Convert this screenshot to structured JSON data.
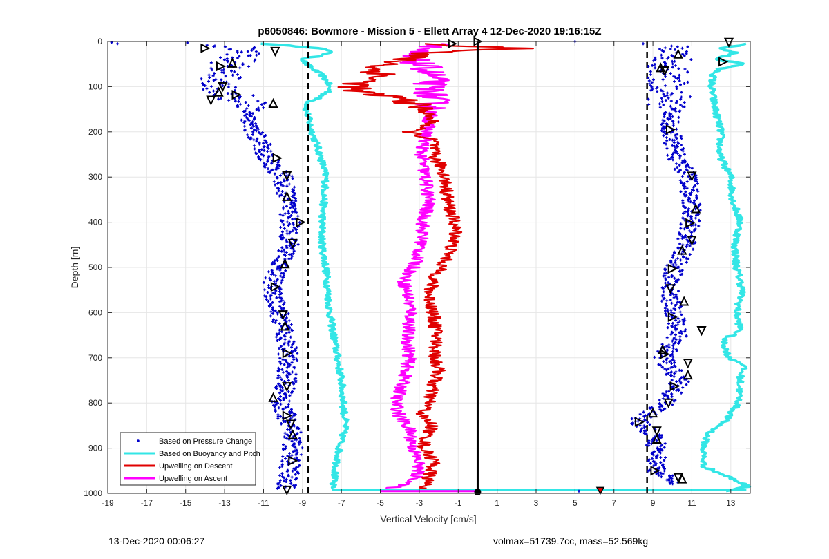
{
  "chart_data": {
    "type": "scatter",
    "title": "p6050846: Bowmore - Mission 5 - Ellett Array 4 12-Dec-2020 19:16:15Z",
    "xlabel": "Vertical Velocity [cm/s]",
    "ylabel": "Depth [m]",
    "xlim": [
      -19,
      14
    ],
    "ylim": [
      0,
      1000
    ],
    "y_reversed": true,
    "grid": true,
    "xticks": [
      -19,
      -17,
      -15,
      -13,
      -11,
      -9,
      -7,
      -5,
      -3,
      -1,
      1,
      3,
      5,
      7,
      9,
      11,
      13
    ],
    "yticks": [
      0,
      100,
      200,
      300,
      400,
      500,
      600,
      700,
      800,
      900,
      1000
    ],
    "legend_position": "bottom-left",
    "legend": [
      {
        "label": "Based on Pressure Change",
        "color": "#0000CC",
        "style": "marker"
      },
      {
        "label": "Based on Buoyancy and Pitch",
        "color": "#33E6E6",
        "style": "line"
      },
      {
        "label": "Upwelling on Descent",
        "color": "#E00000",
        "style": "line"
      },
      {
        "label": "Upwelling on Ascent",
        "color": "#FF00FF",
        "style": "line"
      }
    ],
    "reference_lines": [
      {
        "x": -8.7,
        "style": "dashed",
        "color": "#000000"
      },
      {
        "x": 8.7,
        "style": "dashed",
        "color": "#000000"
      },
      {
        "x": 0,
        "style": "solid",
        "color": "#000000"
      }
    ],
    "series": [
      {
        "name": "Based on Buoyancy and Pitch",
        "color": "#33E6E6",
        "segments": [
          {
            "depth": [
              5,
              15,
              25,
              40,
              50,
              60,
              75,
              90,
              110,
              125,
              135,
              150,
              170,
              200,
              250,
              300,
              350,
              400,
              450,
              500,
              550,
              600,
              650,
              700,
              750,
              800,
              850,
              900,
              950,
              990
            ],
            "velocity": [
              -11,
              -8,
              -7.5,
              -9,
              -8.8,
              -8.5,
              -8,
              -7.7,
              -7.6,
              -8.2,
              -8.7,
              -8.8,
              -8.7,
              -8.5,
              -8.1,
              -7.8,
              -7.9,
              -8,
              -8,
              -7.8,
              -7.7,
              -7.6,
              -7.4,
              -7.2,
              -7,
              -6.9,
              -6.8,
              -7.1,
              -7.3,
              -7.5
            ]
          },
          {
            "depth": [
              5,
              15,
              25,
              40,
              50,
              60,
              75,
              100,
              150,
              200,
              250,
              300,
              350,
              400,
              450,
              500,
              550,
              600,
              640,
              660,
              700,
              715,
              740,
              800,
              840,
              870,
              900,
              940,
              970,
              985,
              995
            ],
            "velocity": [
              13.9,
              12.5,
              13.2,
              12.2,
              13.8,
              12.4,
              12.1,
              12,
              12.2,
              12.5,
              12.4,
              13,
              13.1,
              13.5,
              13.2,
              13.3,
              13.6,
              13.3,
              13.5,
              12.6,
              12.9,
              13.7,
              13.5,
              13.4,
              12.7,
              11.8,
              11.6,
              11.6,
              13.2,
              13.9,
              12.8
            ]
          }
        ]
      },
      {
        "name": "Upwelling on Descent",
        "color": "#E00000",
        "depth": [
          5,
          15,
          25,
          35,
          50,
          60,
          75,
          90,
          110,
          125,
          140,
          160,
          180,
          200,
          220,
          240,
          260,
          280,
          300,
          330,
          360,
          400,
          430,
          450,
          480,
          500,
          530,
          560,
          600,
          650,
          700,
          730,
          760,
          800,
          830,
          850,
          870,
          900,
          930,
          960,
          990
        ],
        "velocity": [
          -3.5,
          2.5,
          -2.5,
          -3.5,
          -4.5,
          -5.5,
          -4.8,
          -6,
          -6.5,
          -4,
          -3.2,
          -2.6,
          -2.3,
          -3.5,
          -2.2,
          -2.3,
          -2.2,
          -1.8,
          -1.7,
          -1.6,
          -1.5,
          -1.2,
          -1.1,
          -1.3,
          -1.6,
          -1.9,
          -2.3,
          -2.5,
          -2.3,
          -2.1,
          -2.2,
          -2.0,
          -2.3,
          -2.5,
          -2.9,
          -2.3,
          -2.6,
          -2.8,
          -2.2,
          -2.5,
          -2.7
        ]
      },
      {
        "name": "Upwelling on Ascent",
        "color": "#FF00FF",
        "depth": [
          5,
          15,
          25,
          40,
          60,
          80,
          100,
          130,
          160,
          200,
          250,
          300,
          350,
          400,
          450,
          500,
          530,
          560,
          600,
          650,
          700,
          750,
          800,
          830,
          860,
          900,
          940,
          970,
          990
        ],
        "velocity": [
          -1.5,
          -2.5,
          -3.8,
          -3.4,
          -2.6,
          -2.3,
          -2.5,
          -2.3,
          -2.4,
          -2.6,
          -2.9,
          -2.7,
          -2.5,
          -2.8,
          -2.9,
          -3.3,
          -3.8,
          -3.6,
          -3.4,
          -3.6,
          -3.5,
          -3.8,
          -4.2,
          -4.0,
          -3.5,
          -3.3,
          -3.0,
          -3.2,
          -4.5
        ]
      }
    ],
    "pressure_change_samples": {
      "name": "Based on Pressure Change",
      "color": "#0000CC",
      "descent": {
        "depth": [
          10,
          30,
          60,
          100,
          130,
          150,
          180,
          220,
          260,
          300,
          350,
          400,
          450,
          500,
          550,
          600,
          650,
          700,
          750,
          800,
          850,
          900,
          950,
          990
        ],
        "velocity": [
          -12.5,
          -12,
          -13,
          -13.5,
          -12.2,
          -11.5,
          -11.8,
          -11.2,
          -10.8,
          -10,
          -9.8,
          -9.6,
          -9.7,
          -10.3,
          -10.6,
          -10.2,
          -9.9,
          -9.7,
          -9.8,
          -10.1,
          -9.6,
          -9.5,
          -9.7,
          -9.8
        ]
      },
      "ascent": {
        "depth": [
          10,
          30,
          60,
          100,
          150,
          200,
          250,
          300,
          350,
          400,
          450,
          500,
          550,
          600,
          650,
          700,
          750,
          800,
          840,
          870,
          900,
          950,
          980
        ],
        "velocity": [
          10.5,
          10,
          9.7,
          9.8,
          9.9,
          9.9,
          10.2,
          10.8,
          11,
          10.9,
          10.7,
          10.1,
          9.8,
          10.1,
          10.3,
          9.5,
          10.4,
          9.7,
          8.2,
          9,
          9.2,
          9.2,
          10.2
        ]
      }
    },
    "triangle_markers": {
      "descent": [
        [
          -14,
          15
        ],
        [
          -10.4,
          22
        ],
        [
          -12.6,
          48
        ],
        [
          -13.2,
          55
        ],
        [
          -13.1,
          100
        ],
        [
          -13.3,
          112
        ],
        [
          -12.4,
          118
        ],
        [
          -13.7,
          130
        ],
        [
          -10.5,
          137
        ],
        [
          -10.3,
          258
        ],
        [
          -9.8,
          297
        ],
        [
          -9.8,
          343
        ],
        [
          -9.1,
          400
        ],
        [
          -9.5,
          447
        ],
        [
          -9.9,
          492
        ],
        [
          -10.4,
          543
        ],
        [
          -10,
          605
        ],
        [
          -9.9,
          630
        ],
        [
          -9.8,
          690
        ],
        [
          -9.8,
          764
        ],
        [
          -10.5,
          788
        ],
        [
          -9.8,
          828
        ],
        [
          -9.6,
          847
        ],
        [
          -9.5,
          870
        ],
        [
          -9.5,
          928
        ],
        [
          -9.8,
          993
        ]
      ],
      "ascent": [
        [
          12.9,
          2
        ],
        [
          10.3,
          28
        ],
        [
          12.6,
          45
        ],
        [
          9.6,
          65
        ],
        [
          9.4,
          58
        ],
        [
          9.9,
          195
        ],
        [
          11,
          298
        ],
        [
          11.2,
          370
        ],
        [
          10.9,
          402
        ],
        [
          11,
          440
        ],
        [
          10.5,
          462
        ],
        [
          10,
          503
        ],
        [
          9.9,
          547
        ],
        [
          10.6,
          575
        ],
        [
          10,
          610
        ],
        [
          11.5,
          640
        ],
        [
          9.5,
          682
        ],
        [
          9.6,
          692
        ],
        [
          10.8,
          712
        ],
        [
          10.8,
          738
        ],
        [
          10.1,
          763
        ],
        [
          9.8,
          800
        ],
        [
          9,
          822
        ],
        [
          8.3,
          842
        ],
        [
          9.2,
          862
        ],
        [
          9.2,
          880
        ],
        [
          9.1,
          950
        ],
        [
          10.3,
          965
        ],
        [
          10.5,
          968
        ]
      ]
    },
    "special_markers": [
      {
        "x": -1.3,
        "y": 5
      },
      {
        "x": 0,
        "y": 0
      },
      {
        "x": 0,
        "y": 997
      },
      {
        "x": 6.3,
        "y": 993
      }
    ],
    "axis_point_labels": {
      "x_negative": "-3",
      "x_positive": "13"
    }
  },
  "footer": {
    "left": "13-Dec-2020 00:06:27",
    "right": "volmax=51739.7cc, mass=52.569kg"
  }
}
